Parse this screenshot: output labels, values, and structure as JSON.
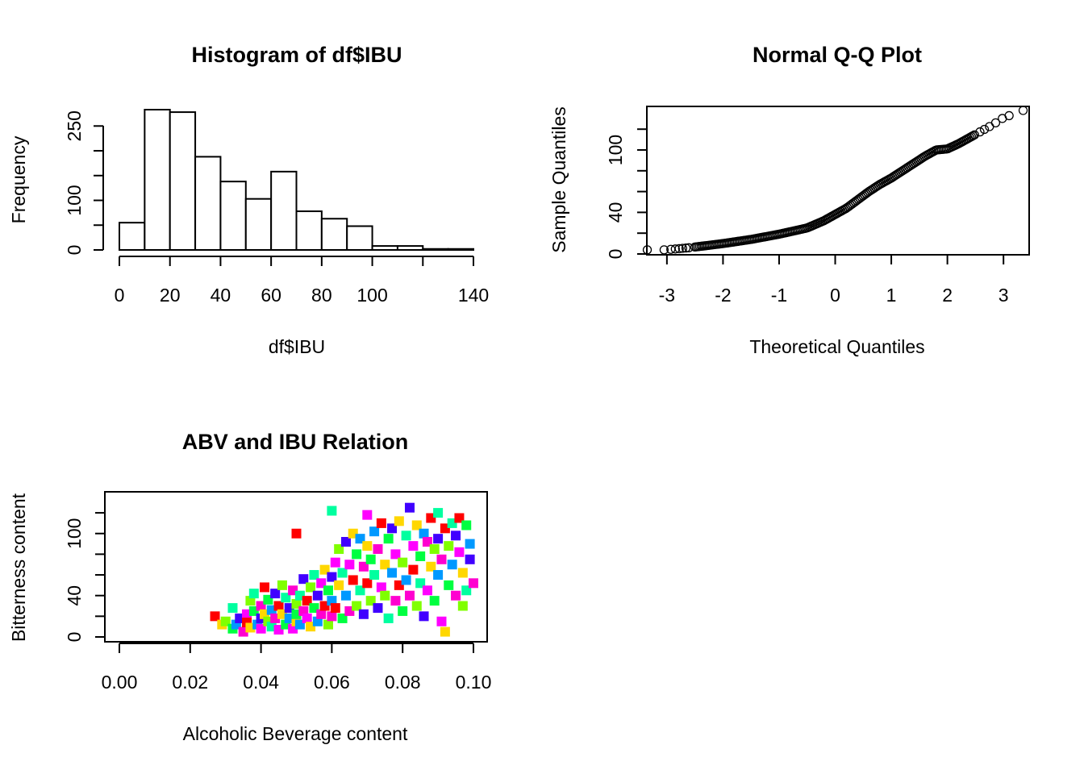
{
  "chart_data": [
    {
      "type": "bar",
      "subtype": "histogram",
      "title": "Histogram of df$IBU",
      "xlabel": "df$IBU",
      "ylabel": "Frequency",
      "bin_edges": [
        0,
        10,
        20,
        30,
        40,
        50,
        60,
        70,
        80,
        90,
        100,
        110,
        120,
        130,
        140
      ],
      "values": [
        55,
        283,
        278,
        188,
        138,
        103,
        158,
        78,
        63,
        48,
        8,
        8,
        2,
        2
      ],
      "xlim": [
        0,
        140
      ],
      "ylim": [
        0,
        283
      ],
      "x_ticks": [
        "0",
        "20",
        "40",
        "60",
        "80",
        "100",
        "140"
      ],
      "y_ticks": [
        "0",
        "100",
        "250"
      ],
      "grid": false
    },
    {
      "type": "scatter",
      "subtype": "normal-qq",
      "title": "Normal Q-Q Plot",
      "xlabel": "Theoretical Quantiles",
      "ylabel": "Sample Quantiles",
      "xlim": [
        -3.3,
        3.4
      ],
      "ylim": [
        0,
        138
      ],
      "x_ticks": [
        "-3",
        "-2",
        "-1",
        "0",
        "1",
        "2",
        "3"
      ],
      "y_ticks": [
        "0",
        "40",
        "100"
      ],
      "curve_points": [
        [
          -3.35,
          4
        ],
        [
          -3.05,
          4
        ],
        [
          -2.8,
          5
        ],
        [
          -2.6,
          6
        ],
        [
          -2.3,
          8
        ],
        [
          -2,
          10
        ],
        [
          -1.5,
          14
        ],
        [
          -1,
          19
        ],
        [
          -0.5,
          25
        ],
        [
          -0.2,
          32
        ],
        [
          0,
          38
        ],
        [
          0.2,
          44
        ],
        [
          0.4,
          52
        ],
        [
          0.6,
          60
        ],
        [
          0.8,
          67
        ],
        [
          1.0,
          73
        ],
        [
          1.2,
          80
        ],
        [
          1.4,
          87
        ],
        [
          1.6,
          94
        ],
        [
          1.8,
          100
        ],
        [
          2.0,
          101
        ],
        [
          2.2,
          106
        ],
        [
          2.4,
          112
        ],
        [
          2.6,
          118
        ],
        [
          2.8,
          124
        ],
        [
          3.0,
          131
        ],
        [
          3.35,
          138
        ]
      ],
      "marker": "open-circle",
      "grid": false
    },
    {
      "type": "scatter",
      "title": "ABV and IBU Relation",
      "xlabel": "Alcoholic Beverage content",
      "ylabel": "Bitterness content",
      "xlim": [
        0,
        0.1
      ],
      "ylim": [
        0,
        138
      ],
      "x_ticks": [
        "0.00",
        "0.02",
        "0.04",
        "0.06",
        "0.08",
        "0.10"
      ],
      "y_ticks": [
        "0",
        "40",
        "100"
      ],
      "marker": "filled-square",
      "point_colors": [
        "#FF0000",
        "#FFD700",
        "#80FF00",
        "#00FF40",
        "#00FF9F",
        "#0099FF",
        "#4000FF",
        "#FF00D0",
        "#FF00FF"
      ],
      "points": [
        [
          0.027,
          20
        ],
        [
          0.029,
          12
        ],
        [
          0.03,
          15
        ],
        [
          0.032,
          8
        ],
        [
          0.032,
          28
        ],
        [
          0.033,
          12
        ],
        [
          0.034,
          18
        ],
        [
          0.035,
          5
        ],
        [
          0.036,
          22
        ],
        [
          0.036,
          14
        ],
        [
          0.037,
          9
        ],
        [
          0.037,
          35
        ],
        [
          0.038,
          25
        ],
        [
          0.038,
          42
        ],
        [
          0.039,
          12
        ],
        [
          0.04,
          18
        ],
        [
          0.04,
          30
        ],
        [
          0.04,
          8
        ],
        [
          0.041,
          48
        ],
        [
          0.041,
          22
        ],
        [
          0.042,
          15
        ],
        [
          0.042,
          36
        ],
        [
          0.043,
          10
        ],
        [
          0.043,
          26
        ],
        [
          0.044,
          42
        ],
        [
          0.044,
          18
        ],
        [
          0.045,
          7
        ],
        [
          0.045,
          30
        ],
        [
          0.046,
          22
        ],
        [
          0.046,
          50
        ],
        [
          0.047,
          12
        ],
        [
          0.047,
          38
        ],
        [
          0.048,
          18
        ],
        [
          0.048,
          28
        ],
        [
          0.049,
          45
        ],
        [
          0.049,
          8
        ],
        [
          0.05,
          100
        ],
        [
          0.05,
          15
        ],
        [
          0.05,
          32
        ],
        [
          0.05,
          22
        ],
        [
          0.051,
          40
        ],
        [
          0.051,
          12
        ],
        [
          0.052,
          56
        ],
        [
          0.052,
          25
        ],
        [
          0.053,
          18
        ],
        [
          0.053,
          35
        ],
        [
          0.054,
          10
        ],
        [
          0.054,
          48
        ],
        [
          0.055,
          28
        ],
        [
          0.055,
          60
        ],
        [
          0.056,
          15
        ],
        [
          0.056,
          40
        ],
        [
          0.057,
          22
        ],
        [
          0.057,
          52
        ],
        [
          0.058,
          30
        ],
        [
          0.058,
          65
        ],
        [
          0.059,
          12
        ],
        [
          0.059,
          45
        ],
        [
          0.06,
          122
        ],
        [
          0.06,
          35
        ],
        [
          0.06,
          58
        ],
        [
          0.06,
          20
        ],
        [
          0.061,
          72
        ],
        [
          0.061,
          28
        ],
        [
          0.062,
          50
        ],
        [
          0.062,
          85
        ],
        [
          0.063,
          18
        ],
        [
          0.063,
          62
        ],
        [
          0.064,
          40
        ],
        [
          0.064,
          92
        ],
        [
          0.065,
          25
        ],
        [
          0.065,
          70
        ],
        [
          0.066,
          55
        ],
        [
          0.066,
          100
        ],
        [
          0.067,
          30
        ],
        [
          0.067,
          80
        ],
        [
          0.068,
          45
        ],
        [
          0.068,
          95
        ],
        [
          0.069,
          22
        ],
        [
          0.069,
          68
        ],
        [
          0.07,
          118
        ],
        [
          0.07,
          52
        ],
        [
          0.07,
          88
        ],
        [
          0.071,
          35
        ],
        [
          0.071,
          75
        ],
        [
          0.072,
          60
        ],
        [
          0.072,
          102
        ],
        [
          0.073,
          28
        ],
        [
          0.073,
          85
        ],
        [
          0.074,
          48
        ],
        [
          0.074,
          110
        ],
        [
          0.075,
          70
        ],
        [
          0.075,
          40
        ],
        [
          0.076,
          95
        ],
        [
          0.076,
          18
        ],
        [
          0.077,
          62
        ],
        [
          0.077,
          105
        ],
        [
          0.078,
          35
        ],
        [
          0.078,
          80
        ],
        [
          0.079,
          50
        ],
        [
          0.079,
          112
        ],
        [
          0.08,
          72
        ],
        [
          0.08,
          25
        ],
        [
          0.081,
          98
        ],
        [
          0.081,
          55
        ],
        [
          0.082,
          125
        ],
        [
          0.082,
          40
        ],
        [
          0.083,
          88
        ],
        [
          0.083,
          65
        ],
        [
          0.084,
          108
        ],
        [
          0.084,
          30
        ],
        [
          0.085,
          78
        ],
        [
          0.085,
          52
        ],
        [
          0.086,
          100
        ],
        [
          0.086,
          20
        ],
        [
          0.087,
          92
        ],
        [
          0.087,
          45
        ],
        [
          0.088,
          115
        ],
        [
          0.088,
          68
        ],
        [
          0.089,
          85
        ],
        [
          0.089,
          35
        ],
        [
          0.09,
          120
        ],
        [
          0.09,
          60
        ],
        [
          0.09,
          95
        ],
        [
          0.091,
          75
        ],
        [
          0.091,
          15
        ],
        [
          0.092,
          105
        ],
        [
          0.092,
          5
        ],
        [
          0.093,
          88
        ],
        [
          0.093,
          50
        ],
        [
          0.094,
          110
        ],
        [
          0.094,
          70
        ],
        [
          0.095,
          98
        ],
        [
          0.095,
          40
        ],
        [
          0.096,
          82
        ],
        [
          0.096,
          115
        ],
        [
          0.097,
          62
        ],
        [
          0.097,
          30
        ],
        [
          0.098,
          108
        ],
        [
          0.098,
          45
        ],
        [
          0.099,
          90
        ],
        [
          0.099,
          75
        ],
        [
          0.1,
          52
        ]
      ]
    }
  ]
}
